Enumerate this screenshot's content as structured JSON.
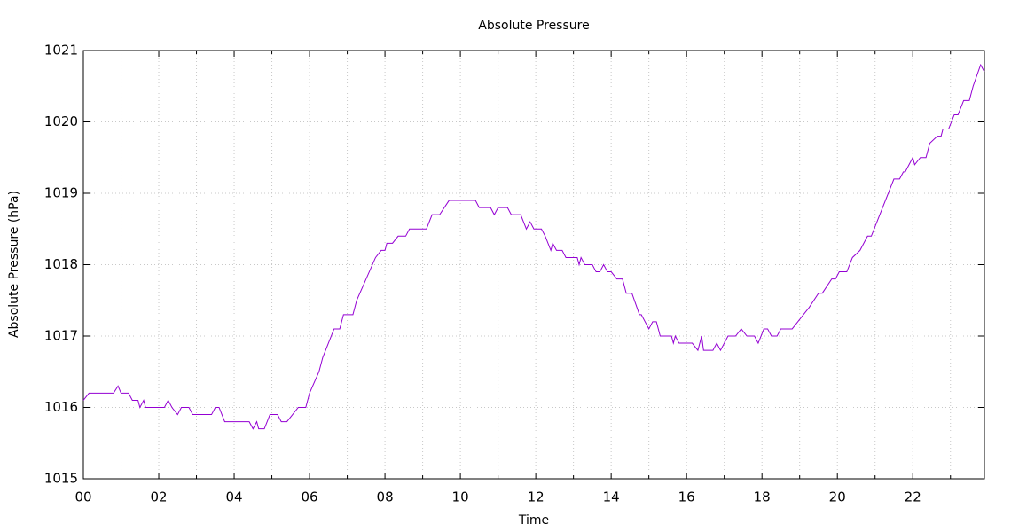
{
  "chart_data": {
    "type": "line",
    "title": "Absolute Pressure",
    "x_label": "Time",
    "y_label": "Absolute Pressure (hPa)",
    "xlim": [
      0,
      23.9
    ],
    "ylim": [
      1015,
      1021
    ],
    "xticks": [
      {
        "value": 0,
        "label": "00"
      },
      {
        "value": 2,
        "label": "02"
      },
      {
        "value": 4,
        "label": "04"
      },
      {
        "value": 6,
        "label": "06"
      },
      {
        "value": 8,
        "label": "08"
      },
      {
        "value": 10,
        "label": "10"
      },
      {
        "value": 12,
        "label": "12"
      },
      {
        "value": 14,
        "label": "14"
      },
      {
        "value": 16,
        "label": "16"
      },
      {
        "value": 18,
        "label": "18"
      },
      {
        "value": 20,
        "label": "20"
      },
      {
        "value": 22,
        "label": "22"
      }
    ],
    "xminorticks": [
      1,
      3,
      5,
      7,
      9,
      11,
      13,
      15,
      17,
      19,
      21,
      23
    ],
    "yticks": [
      1015,
      1016,
      1017,
      1018,
      1019,
      1020,
      1021
    ],
    "grid": true,
    "x": [
      0,
      0.15,
      0.8,
      0.92,
      1.0,
      1.2,
      1.3,
      1.45,
      1.5,
      1.6,
      1.65,
      2.15,
      2.25,
      2.35,
      2.5,
      2.6,
      2.8,
      2.9,
      3.4,
      3.5,
      3.6,
      3.75,
      4.4,
      4.5,
      4.6,
      4.65,
      4.8,
      4.95,
      5.15,
      5.25,
      5.4,
      5.55,
      5.7,
      5.9,
      6.0,
      6.25,
      6.35,
      6.5,
      6.65,
      6.8,
      6.9,
      7.15,
      7.25,
      7.75,
      7.9,
      8.0,
      8.05,
      8.2,
      8.35,
      8.55,
      8.65,
      9.1,
      9.25,
      9.45,
      9.7,
      10.4,
      10.5,
      10.8,
      10.9,
      11.0,
      11.25,
      11.35,
      11.6,
      11.75,
      11.85,
      11.95,
      12.15,
      12.25,
      12.4,
      12.45,
      12.55,
      12.7,
      12.8,
      13.1,
      13.15,
      13.2,
      13.3,
      13.5,
      13.6,
      13.7,
      13.8,
      13.9,
      14.0,
      14.15,
      14.3,
      14.4,
      14.55,
      14.75,
      14.8,
      15.0,
      15.1,
      15.2,
      15.3,
      15.6,
      15.65,
      15.7,
      15.8,
      16.15,
      16.3,
      16.4,
      16.45,
      16.7,
      16.8,
      16.9,
      17.1,
      17.3,
      17.45,
      17.6,
      17.8,
      17.9,
      18.05,
      18.15,
      18.25,
      18.4,
      18.5,
      18.8,
      18.95,
      19.1,
      19.25,
      19.5,
      19.6,
      19.85,
      19.95,
      20.05,
      20.25,
      20.4,
      20.6,
      20.8,
      20.9,
      21.05,
      21.5,
      21.65,
      21.75,
      21.8,
      22.0,
      22.05,
      22.2,
      22.35,
      22.45,
      22.65,
      22.75,
      22.8,
      22.95,
      23.1,
      23.2,
      23.35,
      23.5,
      23.6,
      23.8,
      23.9
    ],
    "series": [
      {
        "name": "Absolute Pressure",
        "color": "#9400d3",
        "values": [
          1016.1,
          1016.2,
          1016.2,
          1016.3,
          1016.2,
          1016.2,
          1016.1,
          1016.1,
          1016.0,
          1016.1,
          1016.0,
          1016.0,
          1016.1,
          1016.0,
          1015.9,
          1016.0,
          1016.0,
          1015.9,
          1015.9,
          1016.0,
          1016.0,
          1015.8,
          1015.8,
          1015.7,
          1015.8,
          1015.7,
          1015.7,
          1015.9,
          1015.9,
          1015.8,
          1015.8,
          1015.9,
          1016.0,
          1016.0,
          1016.2,
          1016.5,
          1016.7,
          1016.9,
          1017.1,
          1017.1,
          1017.3,
          1017.3,
          1017.5,
          1018.1,
          1018.2,
          1018.2,
          1018.3,
          1018.3,
          1018.4,
          1018.4,
          1018.5,
          1018.5,
          1018.7,
          1018.7,
          1018.9,
          1018.9,
          1018.8,
          1018.8,
          1018.7,
          1018.8,
          1018.8,
          1018.7,
          1018.7,
          1018.5,
          1018.6,
          1018.5,
          1018.5,
          1018.4,
          1018.2,
          1018.3,
          1018.2,
          1018.2,
          1018.1,
          1018.1,
          1018.0,
          1018.1,
          1018.0,
          1018.0,
          1017.9,
          1017.9,
          1018.0,
          1017.9,
          1017.9,
          1017.8,
          1017.8,
          1017.6,
          1017.6,
          1017.3,
          1017.3,
          1017.1,
          1017.2,
          1017.2,
          1017.0,
          1017.0,
          1016.9,
          1017.0,
          1016.9,
          1016.9,
          1016.8,
          1017.0,
          1016.8,
          1016.8,
          1016.9,
          1016.8,
          1017.0,
          1017.0,
          1017.1,
          1017.0,
          1017.0,
          1016.9,
          1017.1,
          1017.1,
          1017.0,
          1017.0,
          1017.1,
          1017.1,
          1017.2,
          1017.3,
          1017.4,
          1017.6,
          1017.6,
          1017.8,
          1017.8,
          1017.9,
          1017.9,
          1018.1,
          1018.2,
          1018.4,
          1018.4,
          1018.6,
          1019.2,
          1019.2,
          1019.3,
          1019.3,
          1019.5,
          1019.4,
          1019.5,
          1019.5,
          1019.7,
          1019.8,
          1019.8,
          1019.9,
          1019.9,
          1020.1,
          1020.1,
          1020.3,
          1020.3,
          1020.5,
          1020.8,
          1020.7
        ]
      }
    ]
  }
}
